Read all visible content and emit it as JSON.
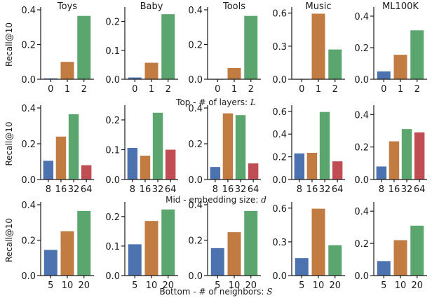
{
  "figure": {
    "colors": [
      "#4C72B0",
      "#C27B41",
      "#5BA66E",
      "#C04C54"
    ],
    "ylabel": "Recall@10",
    "columns": [
      "Toys",
      "Baby",
      "Tools",
      "Music",
      "ML100K"
    ],
    "rows": [
      {
        "caption_prefix": "Top - # of layers: ",
        "caption_var": "L"
      },
      {
        "caption_prefix": "Mid - embedding size: ",
        "caption_var": "d"
      },
      {
        "caption_prefix": "Bottom - # of neighbors: ",
        "caption_var": "S"
      }
    ]
  },
  "chart_data": [
    {
      "type": "bar",
      "panel": "Top / Toys",
      "title": "Toys",
      "ylabel": "Recall@10",
      "categories": [
        "0",
        "1",
        "2"
      ],
      "values": [
        0.005,
        0.1,
        0.365
      ],
      "ylim": [
        0,
        0.4
      ],
      "yticks": [
        0.0,
        0.2,
        0.4
      ],
      "ytick_labels": [
        "0.0",
        "0.2",
        "0.4"
      ]
    },
    {
      "type": "bar",
      "panel": "Top / Baby",
      "title": "Baby",
      "categories": [
        "0",
        "1",
        "2"
      ],
      "values": [
        0.006,
        0.057,
        0.225
      ],
      "ylim": [
        0,
        0.24
      ],
      "yticks": [
        0.0,
        0.1,
        0.2
      ],
      "ytick_labels": [
        "0.0",
        "0.1",
        "0.2"
      ]
    },
    {
      "type": "bar",
      "panel": "Top / Tools",
      "title": "Tools",
      "categories": [
        "0",
        "1",
        "2"
      ],
      "values": [
        0.0,
        0.065,
        0.365
      ],
      "ylim": [
        0,
        0.4
      ],
      "yticks": [
        0.0,
        0.2,
        0.4
      ],
      "ytick_labels": [
        "0.0",
        "0.2",
        "0.4"
      ]
    },
    {
      "type": "bar",
      "panel": "Top / Music",
      "title": "Music",
      "categories": [
        "0",
        "1",
        "2"
      ],
      "values": [
        0.0,
        0.595,
        0.27
      ],
      "ylim": [
        0,
        0.63
      ],
      "yticks": [
        0.0,
        0.3,
        0.6
      ],
      "ytick_labels": [
        "0.0",
        "0.3",
        "0.6"
      ]
    },
    {
      "type": "bar",
      "panel": "Top / ML100K",
      "title": "ML100K",
      "categories": [
        "0",
        "1",
        "2"
      ],
      "values": [
        0.05,
        0.155,
        0.31
      ],
      "ylim": [
        0,
        0.44
      ],
      "yticks": [
        0.0,
        0.2,
        0.4
      ],
      "ytick_labels": [
        "0.0",
        "0.2",
        "0.4"
      ]
    },
    {
      "type": "bar",
      "panel": "Mid / Toys",
      "ylabel": "Recall@10",
      "categories": [
        "8",
        "16",
        "32",
        "64"
      ],
      "values": [
        0.105,
        0.24,
        0.365,
        0.08
      ],
      "ylim": [
        0,
        0.4
      ],
      "yticks": [
        0.0,
        0.2,
        0.4
      ],
      "ytick_labels": [
        "0.0",
        "0.2",
        "0.4"
      ]
    },
    {
      "type": "bar",
      "panel": "Mid / Baby",
      "categories": [
        "8",
        "16",
        "32",
        "64"
      ],
      "values": [
        0.106,
        0.08,
        0.224,
        0.1
      ],
      "ylim": [
        0,
        0.24
      ],
      "yticks": [
        0.0,
        0.1,
        0.2
      ],
      "ytick_labels": [
        "0.0",
        "0.1",
        "0.2"
      ]
    },
    {
      "type": "bar",
      "panel": "Mid / Tools",
      "categories": [
        "8",
        "16",
        "32",
        "64"
      ],
      "values": [
        0.07,
        0.37,
        0.36,
        0.09
      ],
      "ylim": [
        0,
        0.4
      ],
      "yticks": [
        0.0,
        0.2,
        0.4
      ],
      "ytick_labels": [
        "0.0",
        "0.2",
        "0.4"
      ]
    },
    {
      "type": "bar",
      "panel": "Mid / Music",
      "categories": [
        "8",
        "16",
        "32",
        "64"
      ],
      "values": [
        0.23,
        0.235,
        0.595,
        0.16
      ],
      "ylim": [
        0,
        0.63
      ],
      "yticks": [
        0.0,
        0.2,
        0.4,
        0.6
      ],
      "ytick_labels": [
        "0.0",
        "0.2",
        "0.4",
        "0.6"
      ]
    },
    {
      "type": "bar",
      "panel": "Mid / ML100K",
      "categories": [
        "8",
        "16",
        "32",
        "64"
      ],
      "values": [
        0.08,
        0.235,
        0.31,
        0.29
      ],
      "ylim": [
        0,
        0.44
      ],
      "yticks": [
        0.0,
        0.2,
        0.4
      ],
      "ytick_labels": [
        "0.0",
        "0.2",
        "0.4"
      ]
    },
    {
      "type": "bar",
      "panel": "Bottom / Toys",
      "ylabel": "Recall@10",
      "categories": [
        "5",
        "10",
        "20"
      ],
      "values": [
        0.145,
        0.25,
        0.365
      ],
      "ylim": [
        0,
        0.4
      ],
      "yticks": [
        0.0,
        0.2,
        0.4
      ],
      "ytick_labels": [
        "0.0",
        "0.2",
        "0.4"
      ]
    },
    {
      "type": "bar",
      "panel": "Bottom / Baby",
      "categories": [
        "5",
        "10",
        "20"
      ],
      "values": [
        0.106,
        0.185,
        0.224
      ],
      "ylim": [
        0,
        0.24
      ],
      "yticks": [
        0.0,
        0.1,
        0.2
      ],
      "ytick_labels": [
        "0.0",
        "0.1",
        "0.2"
      ]
    },
    {
      "type": "bar",
      "panel": "Bottom / Tools",
      "categories": [
        "5",
        "10",
        "20"
      ],
      "values": [
        0.155,
        0.245,
        0.365
      ],
      "ylim": [
        0,
        0.4
      ],
      "yticks": [
        0.0,
        0.2,
        0.4
      ],
      "ytick_labels": [
        "0.0",
        "0.2",
        "0.4"
      ]
    },
    {
      "type": "bar",
      "panel": "Bottom / Music",
      "categories": [
        "5",
        "10",
        "20"
      ],
      "values": [
        0.155,
        0.595,
        0.27
      ],
      "ylim": [
        0,
        0.63
      ],
      "yticks": [
        0.0,
        0.3,
        0.6
      ],
      "ytick_labels": [
        "0.0",
        "0.3",
        "0.6"
      ]
    },
    {
      "type": "bar",
      "panel": "Bottom / ML100K",
      "categories": [
        "5",
        "10",
        "20"
      ],
      "values": [
        0.09,
        0.22,
        0.31
      ],
      "ylim": [
        0,
        0.44
      ],
      "yticks": [
        0.0,
        0.2,
        0.4
      ],
      "ytick_labels": [
        "0.0",
        "0.2",
        "0.4"
      ]
    }
  ]
}
